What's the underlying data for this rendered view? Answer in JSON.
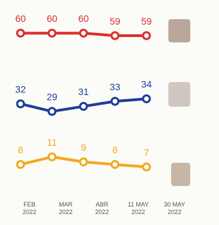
{
  "chart_data": {
    "type": "line",
    "categories": [
      "FEB 2022",
      "MAR 2022",
      "ABR 2022",
      "11 MAY 2022",
      "30 MAY 2022"
    ],
    "series": [
      {
        "color": "#d8302c",
        "values": [
          60,
          60,
          60,
          59,
          59
        ]
      },
      {
        "color": "#1f3d9a",
        "values": [
          32,
          29,
          31,
          33,
          34
        ]
      },
      {
        "color": "#f2a91e",
        "values": [
          8,
          11,
          9,
          8,
          7
        ]
      }
    ],
    "ylim": [
      0,
      65
    ]
  }
}
